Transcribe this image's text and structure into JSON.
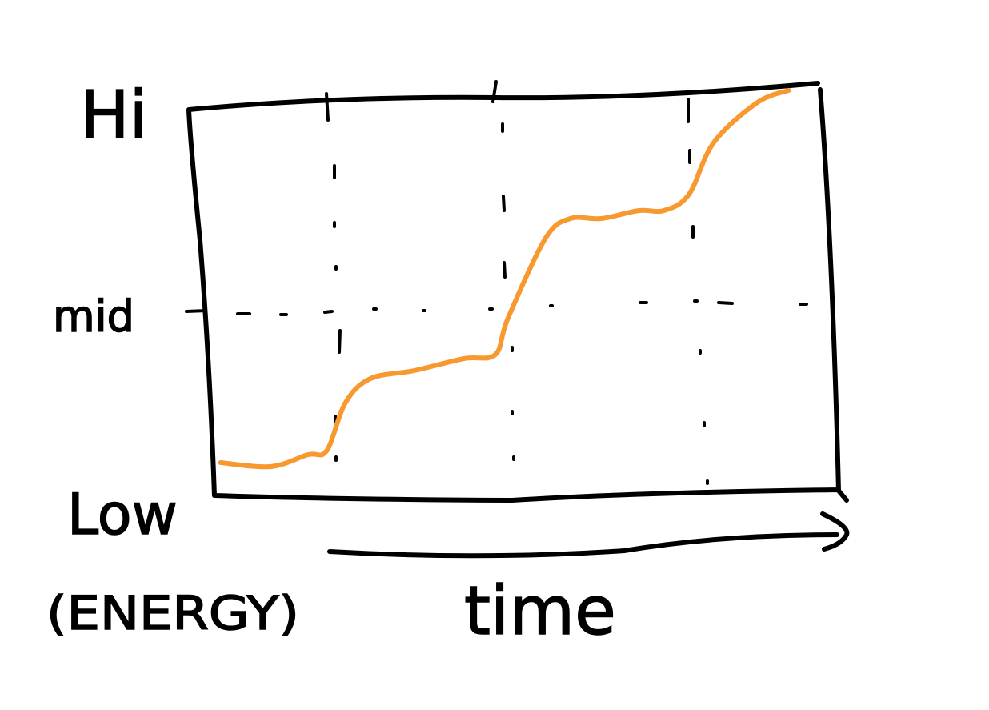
{
  "chart_data": {
    "type": "line",
    "title": "",
    "xlabel": "time",
    "ylabel": "(ENERGY)",
    "yticks": [
      "Low",
      "mid",
      "Hi"
    ],
    "ylim": [
      0,
      1
    ],
    "xlim": [
      0,
      1
    ],
    "grid": "dashed",
    "hand_drawn": true,
    "series": [
      {
        "color": "#f7992f",
        "x": [
          0.01,
          0.09,
          0.15,
          0.18,
          0.21,
          0.25,
          0.32,
          0.4,
          0.45,
          0.47,
          0.53,
          0.57,
          0.62,
          0.68,
          0.72,
          0.76,
          0.8,
          0.87,
          0.92
        ],
        "y": [
          0.07,
          0.06,
          0.09,
          0.1,
          0.22,
          0.28,
          0.3,
          0.33,
          0.34,
          0.43,
          0.63,
          0.68,
          0.68,
          0.7,
          0.7,
          0.74,
          0.87,
          0.97,
          1.0
        ]
      }
    ]
  }
}
